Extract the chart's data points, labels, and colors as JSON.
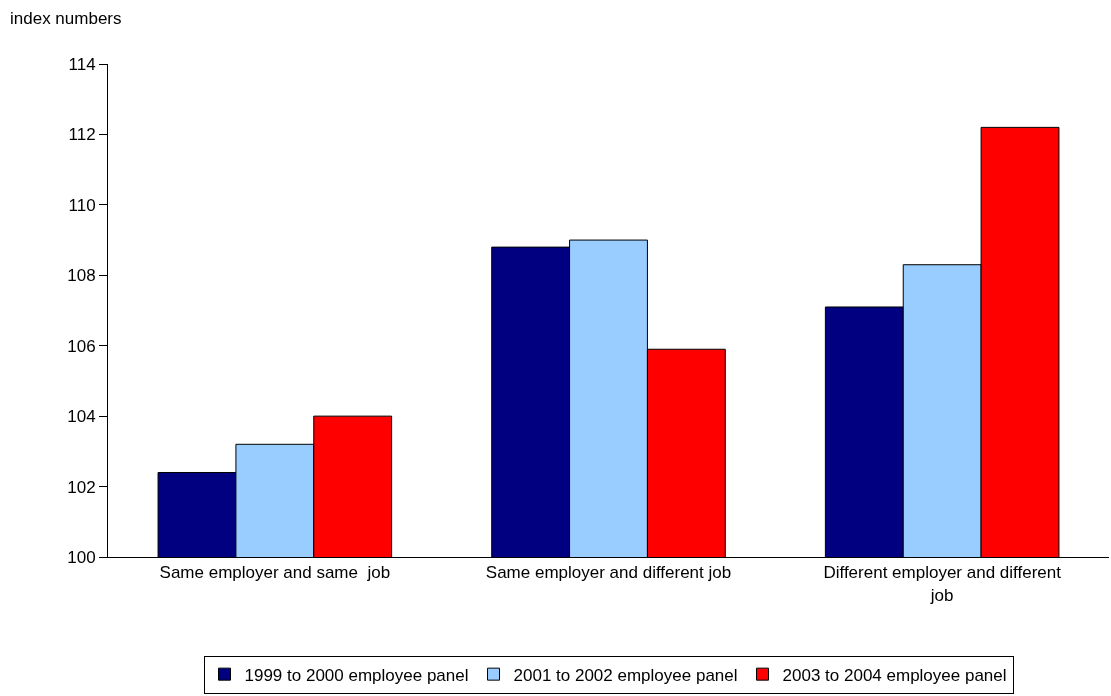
{
  "chart_data": {
    "type": "bar",
    "ylabel": "index numbers",
    "categories": [
      "Same employer and same  job",
      "Same employer and different job",
      "Different employer and different job"
    ],
    "series": [
      {
        "name": "1999 to 2000 employee panel",
        "color": "#000080",
        "values": [
          102.4,
          108.8,
          107.1
        ]
      },
      {
        "name": "2001 to 2002 employee panel",
        "color": "#99ccff",
        "values": [
          103.2,
          109.0,
          108.3
        ]
      },
      {
        "name": "2003 to 2004 employee panel",
        "color": "#ff0000",
        "values": [
          104.0,
          105.9,
          112.2
        ]
      }
    ],
    "ylim": [
      100,
      114
    ],
    "yticks": [
      100,
      102,
      104,
      106,
      108,
      110,
      112,
      114
    ],
    "grid": false,
    "legend": "bottom"
  }
}
